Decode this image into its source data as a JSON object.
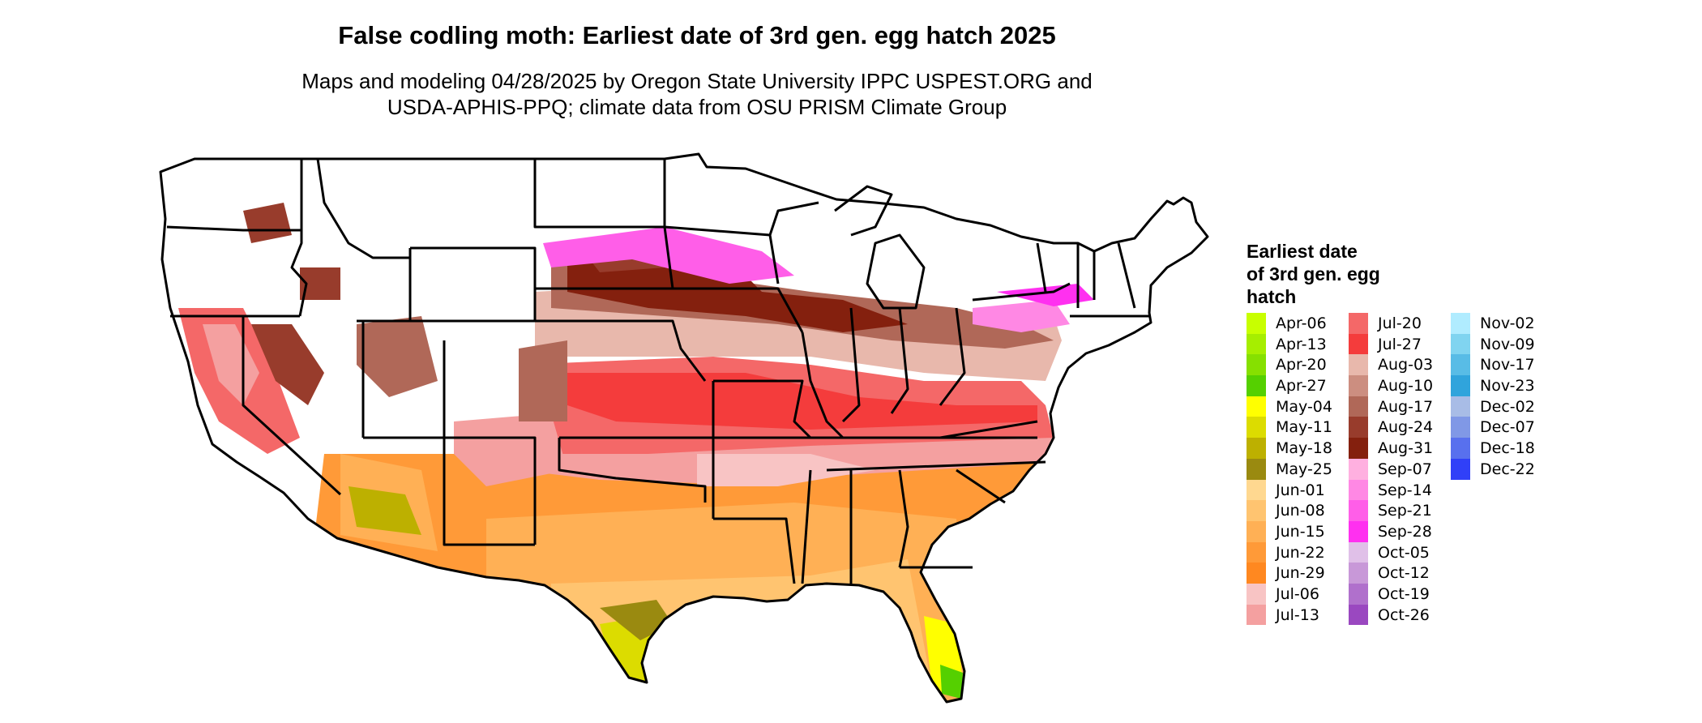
{
  "header": {
    "title": "False codling moth: Earliest date of 3rd gen. egg hatch 2025",
    "subtitle_line1": "Maps and modeling 04/28/2025 by Oregon State University IPPC USPEST.ORG and",
    "subtitle_line2": "USDA-APHIS-PPQ; climate data from OSU PRISM Climate Group"
  },
  "legend": {
    "title_line1": "Earliest date",
    "title_line2": "of 3rd gen. egg",
    "title_line3": "hatch",
    "columns": [
      [
        {
          "label": "Apr-06",
          "color": "#c8ff00"
        },
        {
          "label": "Apr-13",
          "color": "#a6ee00"
        },
        {
          "label": "Apr-20",
          "color": "#86e000"
        },
        {
          "label": "Apr-27",
          "color": "#55d000"
        },
        {
          "label": "May-04",
          "color": "#ffff00"
        },
        {
          "label": "May-11",
          "color": "#dcdc00"
        },
        {
          "label": "May-18",
          "color": "#bdb000"
        },
        {
          "label": "May-25",
          "color": "#9a8a10"
        },
        {
          "label": "Jun-01",
          "color": "#ffd890"
        },
        {
          "label": "Jun-08",
          "color": "#ffc470"
        },
        {
          "label": "Jun-15",
          "color": "#ffb055"
        },
        {
          "label": "Jun-22",
          "color": "#ff9a38"
        },
        {
          "label": "Jun-29",
          "color": "#ff8820"
        },
        {
          "label": "Jul-06",
          "color": "#f8c4c4"
        },
        {
          "label": "Jul-13",
          "color": "#f4a0a0"
        }
      ],
      [
        {
          "label": "Jul-20",
          "color": "#f46868"
        },
        {
          "label": "Jul-27",
          "color": "#f43c3c"
        },
        {
          "label": "Aug-03",
          "color": "#e8b8ac"
        },
        {
          "label": "Aug-10",
          "color": "#cc8e80"
        },
        {
          "label": "Aug-17",
          "color": "#b06858"
        },
        {
          "label": "Aug-24",
          "color": "#983c2c"
        },
        {
          "label": "Aug-31",
          "color": "#84200e"
        },
        {
          "label": "Sep-07",
          "color": "#ffb0e0"
        },
        {
          "label": "Sep-14",
          "color": "#ff88e4"
        },
        {
          "label": "Sep-21",
          "color": "#ff5ee8"
        },
        {
          "label": "Sep-28",
          "color": "#ff30f0"
        },
        {
          "label": "Oct-05",
          "color": "#e0c0e8"
        },
        {
          "label": "Oct-12",
          "color": "#c898d8"
        },
        {
          "label": "Oct-19",
          "color": "#b070cc"
        },
        {
          "label": "Oct-26",
          "color": "#9a48c0"
        }
      ],
      [
        {
          "label": "Nov-02",
          "color": "#b0ecff"
        },
        {
          "label": "Nov-09",
          "color": "#80d4f0"
        },
        {
          "label": "Nov-17",
          "color": "#58bce6"
        },
        {
          "label": "Nov-23",
          "color": "#30a4dc"
        },
        {
          "label": "Dec-02",
          "color": "#a8bce6"
        },
        {
          "label": "Dec-07",
          "color": "#8098e6"
        },
        {
          "label": "Dec-18",
          "color": "#5870ee"
        },
        {
          "label": "Dec-22",
          "color": "#3040f8"
        }
      ]
    ]
  }
}
